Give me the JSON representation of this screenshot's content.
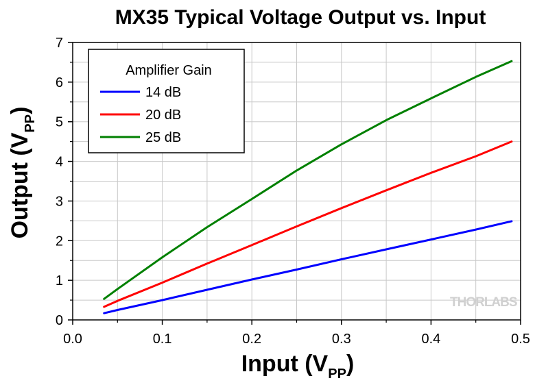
{
  "chart_data": {
    "type": "line",
    "title": "MX35 Typical Voltage Output vs. Input",
    "xlabel": "Input (V",
    "xlabel_sub": "PP",
    "xlabel_close": ")",
    "ylabel": "Output (V",
    "ylabel_sub": "PP",
    "ylabel_close": ")",
    "xlim": [
      0.0,
      0.5
    ],
    "ylim": [
      0,
      7
    ],
    "xticks": [
      "0.0",
      "0.1",
      "0.2",
      "0.3",
      "0.4",
      "0.5"
    ],
    "yticks": [
      "0",
      "1",
      "2",
      "3",
      "4",
      "5",
      "6",
      "7"
    ],
    "grid": true,
    "legend_title": "Amplifier Gain",
    "legend_position": "top-left",
    "series": [
      {
        "name": "14 dB",
        "color": "#0000ff",
        "x": [
          0.035,
          0.05,
          0.1,
          0.15,
          0.2,
          0.25,
          0.3,
          0.35,
          0.4,
          0.45,
          0.49
        ],
        "y": [
          0.17,
          0.25,
          0.5,
          0.76,
          1.02,
          1.27,
          1.53,
          1.78,
          2.03,
          2.28,
          2.49
        ]
      },
      {
        "name": "20 dB",
        "color": "#ff0000",
        "x": [
          0.035,
          0.05,
          0.1,
          0.15,
          0.2,
          0.25,
          0.3,
          0.35,
          0.4,
          0.45,
          0.49
        ],
        "y": [
          0.33,
          0.48,
          0.94,
          1.42,
          1.89,
          2.36,
          2.82,
          3.27,
          3.71,
          4.13,
          4.5
        ]
      },
      {
        "name": "25 dB",
        "color": "#008000",
        "x": [
          0.035,
          0.05,
          0.1,
          0.15,
          0.2,
          0.25,
          0.3,
          0.35,
          0.4,
          0.45,
          0.49
        ],
        "y": [
          0.53,
          0.78,
          1.58,
          2.34,
          3.05,
          3.77,
          4.43,
          5.04,
          5.59,
          6.13,
          6.53
        ]
      }
    ]
  },
  "watermark": "THORLABS"
}
